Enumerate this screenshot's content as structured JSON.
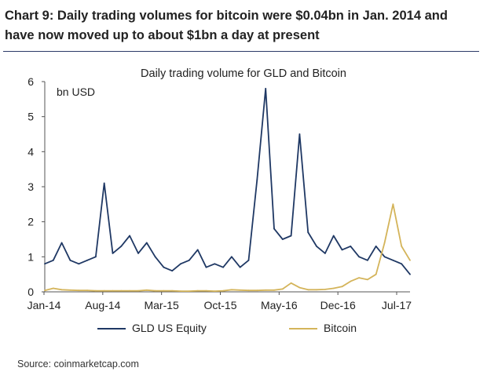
{
  "heading": "Chart 9: Daily trading volumes for bitcoin were $0.04bn in Jan. 2014 and have now moved up to about $1bn a day at present",
  "source": "Source: coinmarketcap.com",
  "colors": {
    "gld": "#1f3864",
    "bitcoin": "#d4b45a",
    "rule": "#2b3a67"
  },
  "chart_data": {
    "type": "line",
    "title": "Daily trading volume for GLD and Bitcoin",
    "unit_label": "bn USD",
    "xlabel": "",
    "ylabel": "",
    "ylim": [
      0,
      6
    ],
    "y_ticks": [
      "0",
      "1",
      "2",
      "3",
      "4",
      "5",
      "6"
    ],
    "x_ticks": [
      "Jan-14",
      "Aug-14",
      "Mar-15",
      "Oct-15",
      "May-16",
      "Dec-16",
      "Jul-17"
    ],
    "x_range": [
      "2014-01",
      "2017-08"
    ],
    "grid": false,
    "legend_position": "bottom",
    "series": [
      {
        "name": "GLD US Equity",
        "color": "#1f3864",
        "x": [
          "2014-01",
          "2014-02",
          "2014-03",
          "2014-04",
          "2014-05",
          "2014-06",
          "2014-07",
          "2014-08",
          "2014-09",
          "2014-10",
          "2014-11",
          "2014-12",
          "2015-01",
          "2015-02",
          "2015-03",
          "2015-04",
          "2015-05",
          "2015-06",
          "2015-07",
          "2015-08",
          "2015-09",
          "2015-10",
          "2015-11",
          "2015-12",
          "2016-01",
          "2016-02",
          "2016-03",
          "2016-04",
          "2016-05",
          "2016-06",
          "2016-07",
          "2016-08",
          "2016-09",
          "2016-10",
          "2016-11",
          "2016-12",
          "2017-01",
          "2017-02",
          "2017-03",
          "2017-04",
          "2017-05",
          "2017-06",
          "2017-07",
          "2017-08"
        ],
        "values": [
          0.8,
          0.9,
          1.4,
          0.9,
          0.8,
          0.9,
          1.0,
          3.1,
          1.1,
          1.3,
          1.6,
          1.1,
          1.4,
          1.0,
          0.7,
          0.6,
          0.8,
          0.9,
          1.2,
          0.7,
          0.8,
          0.7,
          1.0,
          0.7,
          0.9,
          3.2,
          5.8,
          1.8,
          1.5,
          1.6,
          4.5,
          1.7,
          1.3,
          1.1,
          1.6,
          1.2,
          1.3,
          1.0,
          0.9,
          1.3,
          1.0,
          0.9,
          0.8,
          0.5
        ]
      },
      {
        "name": "Bitcoin",
        "color": "#d4b45a",
        "x": [
          "2014-01",
          "2014-02",
          "2014-03",
          "2014-04",
          "2014-05",
          "2014-06",
          "2014-07",
          "2014-08",
          "2014-09",
          "2014-10",
          "2014-11",
          "2014-12",
          "2015-01",
          "2015-02",
          "2015-03",
          "2015-04",
          "2015-05",
          "2015-06",
          "2015-07",
          "2015-08",
          "2015-09",
          "2015-10",
          "2015-11",
          "2015-12",
          "2016-01",
          "2016-02",
          "2016-03",
          "2016-04",
          "2016-05",
          "2016-06",
          "2016-07",
          "2016-08",
          "2016-09",
          "2016-10",
          "2016-11",
          "2016-12",
          "2017-01",
          "2017-02",
          "2017-03",
          "2017-04",
          "2017-05",
          "2017-06",
          "2017-07",
          "2017-08"
        ],
        "values": [
          0.04,
          0.1,
          0.06,
          0.05,
          0.04,
          0.04,
          0.03,
          0.03,
          0.03,
          0.03,
          0.03,
          0.03,
          0.05,
          0.03,
          0.03,
          0.03,
          0.02,
          0.02,
          0.03,
          0.03,
          0.02,
          0.03,
          0.06,
          0.05,
          0.04,
          0.04,
          0.05,
          0.05,
          0.08,
          0.25,
          0.12,
          0.06,
          0.06,
          0.07,
          0.1,
          0.15,
          0.3,
          0.4,
          0.35,
          0.5,
          1.4,
          2.5,
          1.3,
          0.9
        ]
      }
    ]
  }
}
